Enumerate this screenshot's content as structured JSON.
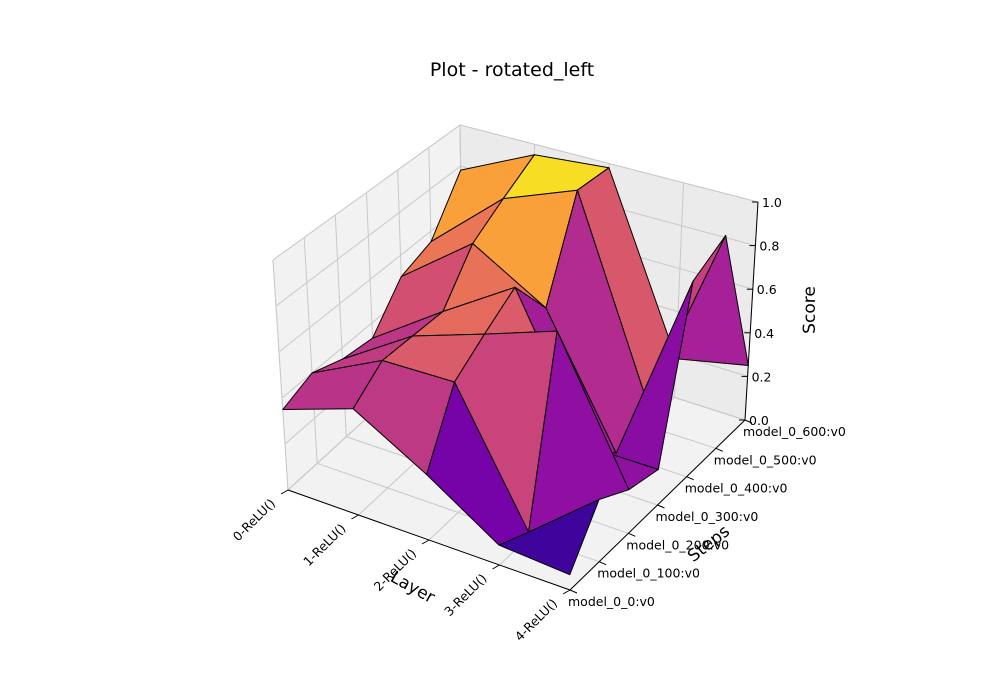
{
  "chart_data": {
    "type": "surface3d",
    "title": "Plot - rotated_left",
    "xlabel": "Layer",
    "ylabel": "Steps",
    "zlabel": "Score",
    "x_categories": [
      "0-ReLU()",
      "1-ReLU()",
      "2-ReLU()",
      "3-ReLU()",
      "4-ReLU()"
    ],
    "y_categories": [
      "model_0_0:v0",
      "model_0_100:v0",
      "model_0_200:v0",
      "model_0_300:v0",
      "model_0_400:v0",
      "model_0_500:v0",
      "model_0_600:v0"
    ],
    "z_ticks": [
      "0.0",
      "0.2",
      "0.4",
      "0.6",
      "0.8",
      "1.0"
    ],
    "zlim": [
      0,
      1
    ],
    "colormap": "plasma",
    "grid": true,
    "values": [
      [
        0.35,
        0.4,
        0.35,
        0.33,
        0.5,
        0.55,
        0.78
      ],
      [
        0.45,
        0.55,
        0.55,
        0.55,
        0.75,
        0.85,
        0.95
      ],
      [
        0.27,
        0.55,
        0.65,
        0.75,
        0.55,
        0.98,
        0.98
      ],
      [
        0.08,
        0.02,
        0.75,
        0.15,
        0.0,
        0.12,
        0.18
      ],
      [
        0.06,
        0.25,
        0.18,
        0.15,
        0.85,
        0.95,
        0.25
      ]
    ]
  }
}
